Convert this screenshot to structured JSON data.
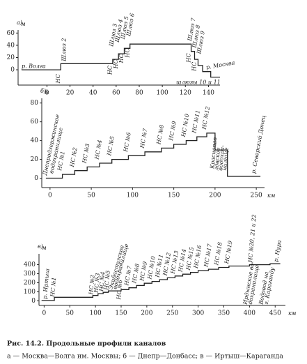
{
  "chart_data": [
    {
      "type": "line",
      "panel": "а)",
      "ylabel": "м",
      "color": "#222",
      "xlim": [
        -25,
        150
      ],
      "ylim": [
        -25,
        65
      ],
      "xticks": [
        0,
        20,
        40,
        60,
        80,
        100,
        120,
        140
      ],
      "yticks": [
        0,
        20,
        40,
        60
      ],
      "x": [
        -22,
        12,
        12,
        57,
        57,
        62,
        62,
        67,
        67,
        72,
        72,
        125,
        125,
        128,
        128,
        131,
        131,
        135,
        135,
        142,
        142,
        150
      ],
      "values": [
        0,
        0,
        10,
        10,
        17,
        17,
        26,
        26,
        35,
        35,
        42,
        42,
        30,
        30,
        17,
        17,
        7,
        7,
        -3,
        -3,
        -12,
        -12
      ],
      "annotations": [
        "р. Волга",
        "НС",
        "Шлюз 2",
        "Шлюз 3",
        "Шлюз 4",
        "Шлюз 5",
        "Шлюз 6",
        "НС",
        "НС",
        "НС",
        "НС",
        "Шлюз 7",
        "Шлюз 8",
        "Шлюз 9",
        "НС",
        "НС",
        "р. Москва",
        "шлюзы 10 и 11"
      ]
    },
    {
      "type": "line",
      "panel": "б)",
      "ylabel": "м",
      "xlabel": "км",
      "color": "#222",
      "xlim": [
        -10,
        260
      ],
      "ylim": [
        -10,
        85
      ],
      "xticks": [
        0,
        50,
        100,
        150,
        200,
        250
      ],
      "yticks": [
        0,
        20,
        40,
        60,
        80
      ],
      "x": [
        -5,
        15,
        15,
        30,
        30,
        45,
        45,
        60,
        60,
        75,
        75,
        95,
        95,
        115,
        115,
        135,
        135,
        150,
        150,
        165,
        165,
        178,
        178,
        190,
        190,
        200,
        200,
        215,
        215,
        255
      ],
      "values": [
        0,
        0,
        4,
        4,
        8,
        8,
        12,
        12,
        16,
        16,
        20,
        20,
        24,
        24,
        28,
        28,
        32,
        32,
        36,
        36,
        40,
        40,
        44,
        44,
        48,
        48,
        30,
        30,
        2,
        2
      ],
      "annotations": [
        "Днепродзержинское",
        "водохранилище",
        "НС №1",
        "НС №2",
        "НС №3",
        "НС №4",
        "НС №5",
        "НС №6",
        "НС №7",
        "НС №8",
        "НС №9",
        "НС №10",
        "НС №11",
        "НС №12",
        "Краснопав-",
        "ловское",
        "водохра-",
        "нилище",
        "р. Северский Донец"
      ]
    },
    {
      "type": "line",
      "panel": "в)",
      "ylabel": "м",
      "xlabel": "км",
      "color": "#222",
      "xlim": [
        -10,
        470
      ],
      "ylim": [
        -50,
        520
      ],
      "xticks": [
        0,
        50,
        100,
        150,
        200,
        250,
        300,
        350,
        400,
        450
      ],
      "yticks": [
        0,
        100,
        200,
        300,
        400
      ],
      "x": [
        -5,
        20,
        20,
        95,
        95,
        105,
        105,
        115,
        115,
        125,
        125,
        150,
        150,
        165,
        165,
        180,
        180,
        195,
        195,
        210,
        210,
        225,
        225,
        240,
        240,
        255,
        255,
        270,
        270,
        285,
        285,
        300,
        300,
        320,
        320,
        340,
        340,
        360,
        360,
        400,
        400,
        440,
        440,
        460
      ],
      "values": [
        5,
        5,
        40,
        40,
        60,
        60,
        80,
        80,
        95,
        95,
        110,
        110,
        125,
        125,
        145,
        145,
        170,
        170,
        195,
        195,
        215,
        215,
        235,
        235,
        255,
        255,
        275,
        275,
        295,
        295,
        315,
        315,
        335,
        335,
        350,
        350,
        370,
        370,
        385,
        385,
        400,
        400,
        410,
        410
      ],
      "annotations": [
        "р. Иртыш",
        "НС №1",
        "НС №2",
        "НС №3",
        "НС №4",
        "НС №5",
        "Экибастузское",
        "водохранилище",
        "НС №6",
        "НС №7",
        "НС №8",
        "НС №9",
        "НС №10",
        "НС №11",
        "НС №12",
        "НС №13",
        "НС №14",
        "НС №15",
        "НС №16",
        "НС №17",
        "НС №18",
        "НС №19",
        "НС №20, 21 и 22",
        "Ирдынское во-",
        "дохранилище",
        "Водовод на",
        "г. Караганду",
        "р. Нура"
      ]
    }
  ],
  "caption": {
    "title": "Рис. 14.2. Продольные профили каналов",
    "text": "а — Москва—Волга им. Москвы; б — Днепр—Донбасс; в — Иртыш—Караганда"
  }
}
